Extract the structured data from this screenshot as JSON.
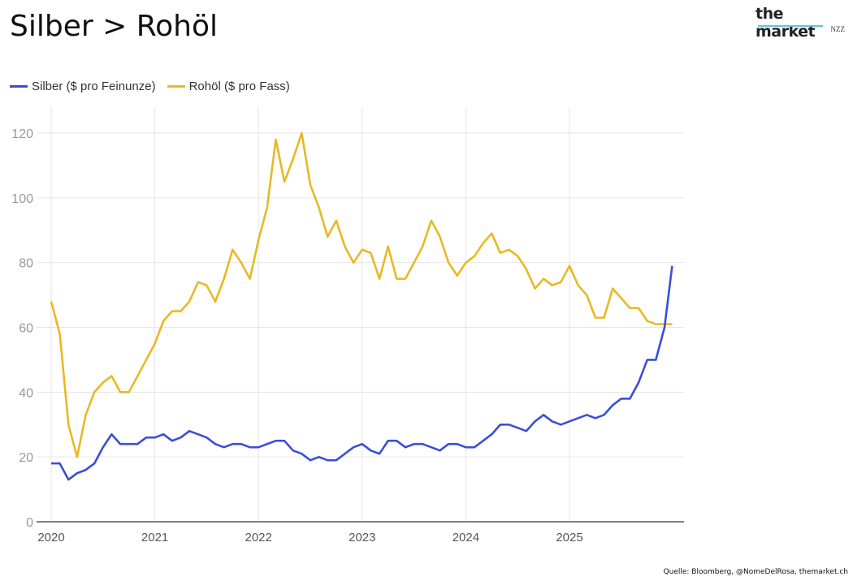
{
  "title": "Silber > Rohöl",
  "logo": {
    "name": "the market",
    "sub": "NZZ"
  },
  "source": "Quelle: Bloomberg, @NomeDelRosa, themarket.ch",
  "chart_data": {
    "type": "line",
    "title": "Silber > Rohöl",
    "xlabel": "",
    "ylabel": "",
    "ylim": [
      0,
      127
    ],
    "yticks": [
      0,
      20,
      40,
      60,
      80,
      100,
      120
    ],
    "xticks": [
      "2020",
      "2021",
      "2022",
      "2023",
      "2024",
      "2025"
    ],
    "xlim": [
      "2020-01",
      "2026-01"
    ],
    "grid": true,
    "legend": "top-left",
    "series": [
      {
        "name": "Silber ($ pro Feinunze)",
        "color": "#3a4fd6",
        "x": [
          "2020-01",
          "2020-02",
          "2020-03",
          "2020-04",
          "2020-05",
          "2020-06",
          "2020-07",
          "2020-08",
          "2020-09",
          "2020-10",
          "2020-11",
          "2020-12",
          "2021-01",
          "2021-02",
          "2021-03",
          "2021-04",
          "2021-05",
          "2021-06",
          "2021-07",
          "2021-08",
          "2021-09",
          "2021-10",
          "2021-11",
          "2021-12",
          "2022-01",
          "2022-02",
          "2022-03",
          "2022-04",
          "2022-05",
          "2022-06",
          "2022-07",
          "2022-08",
          "2022-09",
          "2022-10",
          "2022-11",
          "2022-12",
          "2023-01",
          "2023-02",
          "2023-03",
          "2023-04",
          "2023-05",
          "2023-06",
          "2023-07",
          "2023-08",
          "2023-09",
          "2023-10",
          "2023-11",
          "2023-12",
          "2024-01",
          "2024-02",
          "2024-03",
          "2024-04",
          "2024-05",
          "2024-06",
          "2024-07",
          "2024-08",
          "2024-09",
          "2024-10",
          "2024-11",
          "2024-12",
          "2025-01",
          "2025-02",
          "2025-03",
          "2025-04",
          "2025-05",
          "2025-06",
          "2025-07",
          "2025-08",
          "2025-09",
          "2025-10",
          "2025-11",
          "2025-12",
          "2025-12-28"
        ],
        "values": [
          18,
          18,
          13,
          15,
          16,
          18,
          23,
          27,
          24,
          24,
          24,
          26,
          26,
          27,
          25,
          26,
          28,
          27,
          26,
          24,
          23,
          24,
          24,
          23,
          23,
          24,
          25,
          25,
          22,
          21,
          19,
          20,
          19,
          19,
          21,
          23,
          24,
          22,
          21,
          25,
          25,
          23,
          24,
          24,
          23,
          22,
          24,
          24,
          23,
          23,
          25,
          27,
          30,
          30,
          29,
          28,
          31,
          33,
          31,
          30,
          31,
          32,
          33,
          32,
          33,
          36,
          38,
          38,
          43,
          50,
          50,
          60,
          79
        ]
      },
      {
        "name": "Rohöl ($ pro Fass)",
        "color": "#e8b923",
        "x": [
          "2020-01",
          "2020-02",
          "2020-03",
          "2020-04",
          "2020-05",
          "2020-06",
          "2020-07",
          "2020-08",
          "2020-09",
          "2020-10",
          "2020-11",
          "2020-12",
          "2021-01",
          "2021-02",
          "2021-03",
          "2021-04",
          "2021-05",
          "2021-06",
          "2021-07",
          "2021-08",
          "2021-09",
          "2021-10",
          "2021-11",
          "2021-12",
          "2022-01",
          "2022-02",
          "2022-03",
          "2022-04",
          "2022-05",
          "2022-06",
          "2022-07",
          "2022-08",
          "2022-09",
          "2022-10",
          "2022-11",
          "2022-12",
          "2023-01",
          "2023-02",
          "2023-03",
          "2023-04",
          "2023-05",
          "2023-06",
          "2023-07",
          "2023-08",
          "2023-09",
          "2023-10",
          "2023-11",
          "2023-12",
          "2024-01",
          "2024-02",
          "2024-03",
          "2024-04",
          "2024-05",
          "2024-06",
          "2024-07",
          "2024-08",
          "2024-09",
          "2024-10",
          "2024-11",
          "2024-12",
          "2025-01",
          "2025-02",
          "2025-03",
          "2025-04",
          "2025-05",
          "2025-06",
          "2025-07",
          "2025-08",
          "2025-09",
          "2025-10",
          "2025-11",
          "2025-12",
          "2025-12-28"
        ],
        "values": [
          68,
          58,
          30,
          20,
          33,
          40,
          43,
          45,
          40,
          40,
          45,
          50,
          55,
          62,
          65,
          65,
          68,
          74,
          73,
          68,
          75,
          84,
          80,
          75,
          87,
          97,
          118,
          105,
          112,
          120,
          104,
          97,
          88,
          93,
          85,
          80,
          84,
          83,
          75,
          85,
          75,
          75,
          80,
          85,
          93,
          88,
          80,
          76,
          80,
          82,
          86,
          89,
          83,
          84,
          82,
          78,
          72,
          75,
          73,
          74,
          79,
          73,
          70,
          63,
          63,
          72,
          69,
          66,
          66,
          62,
          61,
          61,
          61
        ]
      }
    ]
  }
}
